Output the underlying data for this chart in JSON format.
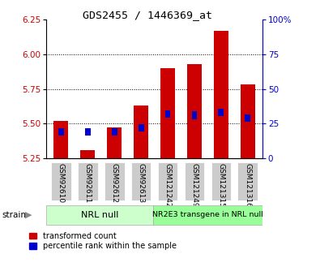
{
  "title": "GDS2455 / 1446369_at",
  "categories": [
    "GSM92610",
    "GSM92611",
    "GSM92612",
    "GSM92613",
    "GSM121242",
    "GSM121249",
    "GSM121315",
    "GSM121316"
  ],
  "red_values": [
    5.52,
    5.31,
    5.47,
    5.63,
    5.9,
    5.93,
    6.17,
    5.78
  ],
  "blue_values": [
    5.44,
    5.44,
    5.44,
    5.47,
    5.57,
    5.56,
    5.58,
    5.54
  ],
  "ymin": 5.25,
  "ymax": 6.25,
  "yticks": [
    5.25,
    5.5,
    5.75,
    6.0,
    6.25
  ],
  "right_yticks": [
    0,
    25,
    50,
    75,
    100
  ],
  "right_ytick_labels": [
    "0",
    "25",
    "50",
    "75",
    "100%"
  ],
  "bar_width": 0.55,
  "red_color": "#cc0000",
  "blue_color": "#0000cc",
  "group1_label": "NRL null",
  "group2_label": "NR2E3 transgene in NRL null",
  "group_bg1": "#ccffcc",
  "group_bg2": "#99ff99",
  "tick_bg": "#cccccc",
  "legend_red": "transformed count",
  "legend_blue": "percentile rank within the sample",
  "strain_label": "strain",
  "left_tick_color": "#cc0000",
  "right_tick_color": "#0000cc",
  "grid_lines": [
    5.5,
    5.75,
    6.0
  ]
}
